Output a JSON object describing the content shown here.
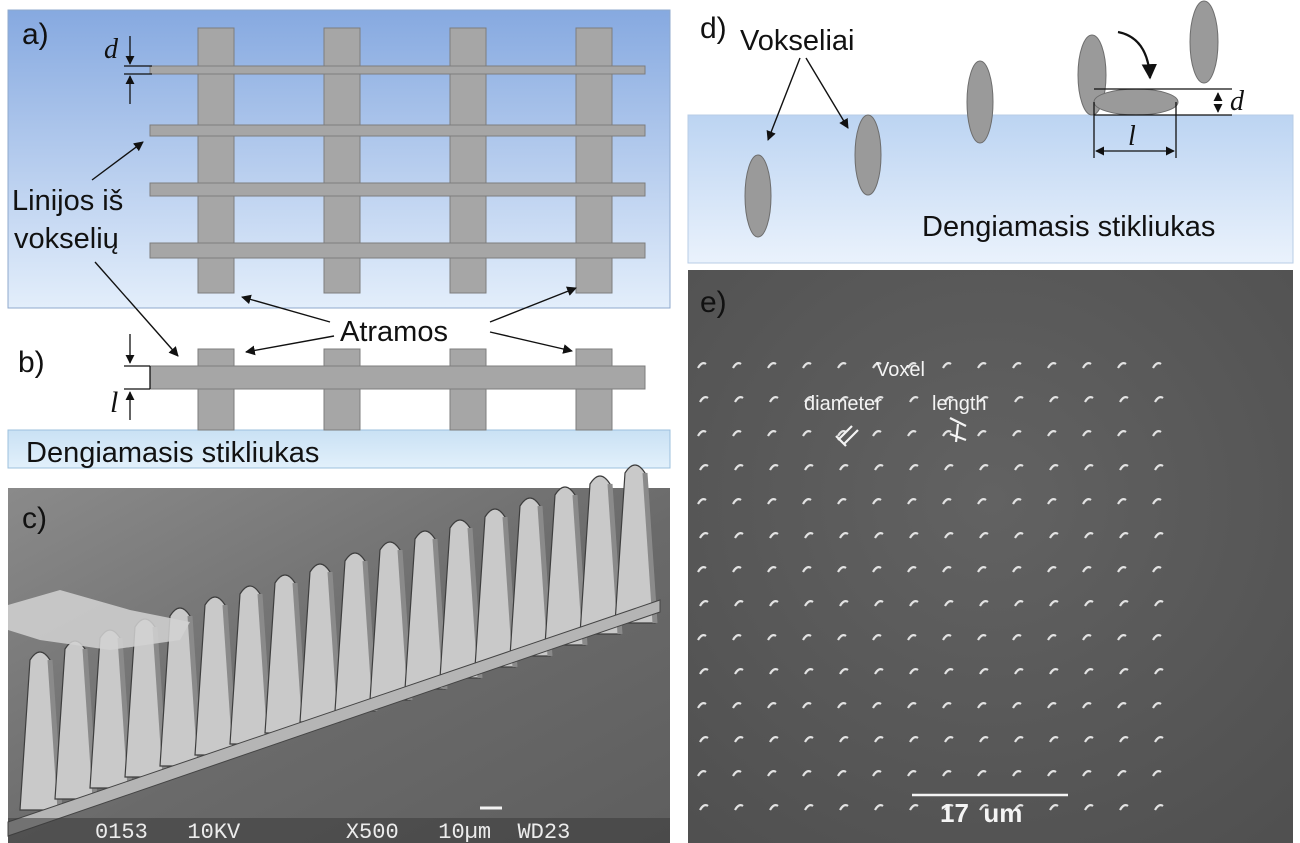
{
  "panels": {
    "a": {
      "letter": "a)",
      "dim_label": "d"
    },
    "b": {
      "letter": "b)",
      "dim_label": "l",
      "substrate_label": "Dengiamasis stikliukas"
    },
    "c": {
      "letter": "c)",
      "scale_caption": "0153   10KV        X500   10µm  WD23"
    },
    "d": {
      "letter": "d)",
      "voxels_label": "Vokseliai",
      "dim_d": "d",
      "dim_l": "l",
      "substrate_label": "Dengiamasis stikliukas"
    },
    "e": {
      "letter": "e)",
      "voxel_label": "Voxel",
      "diameter_label": "diameter",
      "length_label": "length",
      "scalebar_label": "17  um"
    }
  },
  "annotations": {
    "lines_label_1": "Linijos iš",
    "lines_label_2": "vokselių",
    "supports_label": "Atramos"
  },
  "colors": {
    "blue_top": "#86a9e0",
    "blue_bottom": "#dbe9fa",
    "substrate": "#d4e8f7",
    "structure_gray": "#a6a6a6",
    "sem_background": "#5a5a5a"
  }
}
